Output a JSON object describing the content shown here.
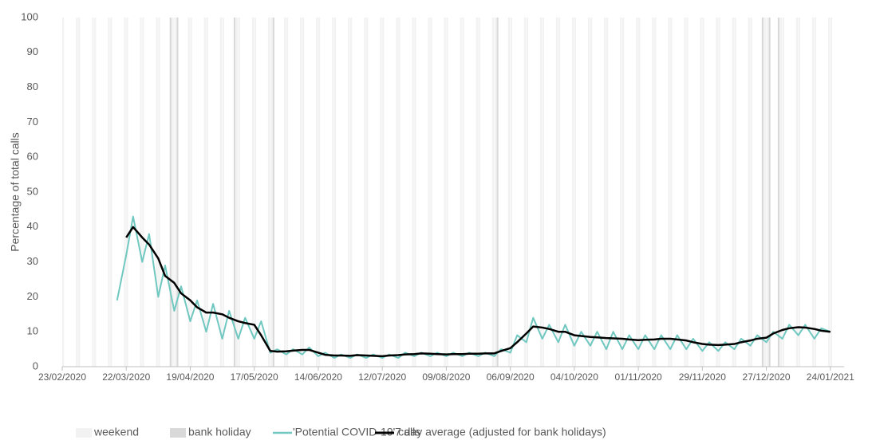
{
  "chart_data": {
    "type": "line",
    "y_label": "Percentage of total calls",
    "xlim": [
      "2020-02-23",
      "2021-01-30"
    ],
    "xticks": [
      {
        "value": "2020-02-23",
        "label": "23/02/2020"
      },
      {
        "value": "2020-03-22",
        "label": "22/03/2020"
      },
      {
        "value": "2020-04-19",
        "label": "19/04/2020"
      },
      {
        "value": "2020-05-17",
        "label": "17/05/2020"
      },
      {
        "value": "2020-06-14",
        "label": "14/06/2020"
      },
      {
        "value": "2020-07-12",
        "label": "12/07/2020"
      },
      {
        "value": "2020-08-09",
        "label": "09/08/2020"
      },
      {
        "value": "2020-09-06",
        "label": "06/09/2020"
      },
      {
        "value": "2020-10-04",
        "label": "04/10/2020"
      },
      {
        "value": "2020-11-01",
        "label": "01/11/2020"
      },
      {
        "value": "2020-11-29",
        "label": "29/11/2020"
      },
      {
        "value": "2020-12-27",
        "label": "27/12/2020"
      },
      {
        "value": "2021-01-24",
        "label": "24/01/2021"
      }
    ],
    "ylim": [
      0,
      100
    ],
    "yticks": [
      0,
      10,
      20,
      30,
      40,
      50,
      60,
      70,
      80,
      90,
      100
    ],
    "shading": [
      {
        "name": "weekend",
        "color": "#f2f2f2"
      },
      {
        "name": "bank holiday",
        "color": "#d9d9d9",
        "dates": [
          "2020-04-10",
          "2020-04-13",
          "2020-05-08",
          "2020-05-25",
          "2020-08-31",
          "2020-12-25",
          "2020-12-28",
          "2021-01-01"
        ]
      }
    ],
    "x": [
      "2020-03-18",
      "2020-03-22",
      "2020-03-25",
      "2020-03-29",
      "2020-04-01",
      "2020-04-05",
      "2020-04-08",
      "2020-04-12",
      "2020-04-15",
      "2020-04-19",
      "2020-04-22",
      "2020-04-26",
      "2020-04-29",
      "2020-05-03",
      "2020-05-06",
      "2020-05-10",
      "2020-05-13",
      "2020-05-17",
      "2020-05-20",
      "2020-05-24",
      "2020-05-27",
      "2020-05-31",
      "2020-06-03",
      "2020-06-07",
      "2020-06-10",
      "2020-06-14",
      "2020-06-17",
      "2020-06-21",
      "2020-06-24",
      "2020-06-28",
      "2020-07-01",
      "2020-07-05",
      "2020-07-08",
      "2020-07-12",
      "2020-07-15",
      "2020-07-19",
      "2020-07-22",
      "2020-07-26",
      "2020-07-29",
      "2020-08-02",
      "2020-08-05",
      "2020-08-09",
      "2020-08-12",
      "2020-08-16",
      "2020-08-19",
      "2020-08-23",
      "2020-08-26",
      "2020-08-30",
      "2020-09-02",
      "2020-09-06",
      "2020-09-09",
      "2020-09-13",
      "2020-09-16",
      "2020-09-20",
      "2020-09-23",
      "2020-09-27",
      "2020-09-30",
      "2020-10-04",
      "2020-10-07",
      "2020-10-11",
      "2020-10-14",
      "2020-10-18",
      "2020-10-21",
      "2020-10-25",
      "2020-10-28",
      "2020-11-01",
      "2020-11-04",
      "2020-11-08",
      "2020-11-11",
      "2020-11-15",
      "2020-11-18",
      "2020-11-22",
      "2020-11-25",
      "2020-11-29",
      "2020-12-02",
      "2020-12-06",
      "2020-12-09",
      "2020-12-13",
      "2020-12-16",
      "2020-12-20",
      "2020-12-23",
      "2020-12-27",
      "2020-12-30",
      "2021-01-03",
      "2021-01-06",
      "2021-01-10",
      "2021-01-13",
      "2021-01-17",
      "2021-01-20",
      "2021-01-24"
    ],
    "series": [
      {
        "name": "'Potential COVID-19' calls",
        "color": "#70c8c0",
        "width": 2,
        "values": [
          19,
          32,
          43,
          30,
          38,
          20,
          29,
          16,
          23,
          13,
          19,
          10,
          18,
          8,
          16,
          8,
          14,
          8,
          13,
          4,
          5,
          3.5,
          5,
          3.5,
          5.5,
          3,
          4,
          2.5,
          3.5,
          2.5,
          3.5,
          2.5,
          3.5,
          2.5,
          3.5,
          2.5,
          4,
          3,
          4,
          3,
          4,
          3,
          4,
          3,
          4,
          3,
          4,
          3,
          5,
          4,
          9,
          7,
          14,
          8,
          12,
          7,
          12,
          6,
          10,
          6,
          10,
          5,
          10,
          5,
          9,
          5,
          9,
          5,
          9,
          5,
          9,
          5,
          8,
          4.5,
          7,
          4.5,
          7,
          5,
          8,
          6,
          9,
          7,
          10,
          8,
          12,
          9,
          12,
          8,
          11,
          10
        ]
      },
      {
        "name": "7 day average (adjusted for bank holidays)",
        "color": "#000000",
        "width": 2.5,
        "values": [
          null,
          37,
          40,
          37,
          35,
          31,
          26,
          24,
          21,
          19,
          17,
          15.5,
          15.5,
          15,
          14,
          13,
          12.5,
          12,
          9,
          4.5,
          4.3,
          4.4,
          4.6,
          4.8,
          4.8,
          4,
          3.4,
          3.2,
          3.2,
          3.1,
          3.3,
          3.2,
          3.1,
          3,
          3.2,
          3.3,
          3.5,
          3.6,
          3.8,
          3.7,
          3.6,
          3.5,
          3.6,
          3.6,
          3.7,
          3.7,
          3.8,
          3.8,
          4.5,
          5.3,
          7,
          9.5,
          11.5,
          11.2,
          10.8,
          10,
          10,
          9,
          8.8,
          8.5,
          8.4,
          8.2,
          8.1,
          8,
          7.8,
          7.6,
          7.7,
          7.8,
          8,
          8,
          7.8,
          7.5,
          7,
          6.5,
          6.3,
          6.2,
          6.3,
          6.5,
          7,
          7.5,
          8,
          8.3,
          9.5,
          10.5,
          11,
          11.3,
          11.2,
          10.8,
          10.3,
          10
        ]
      }
    ]
  }
}
